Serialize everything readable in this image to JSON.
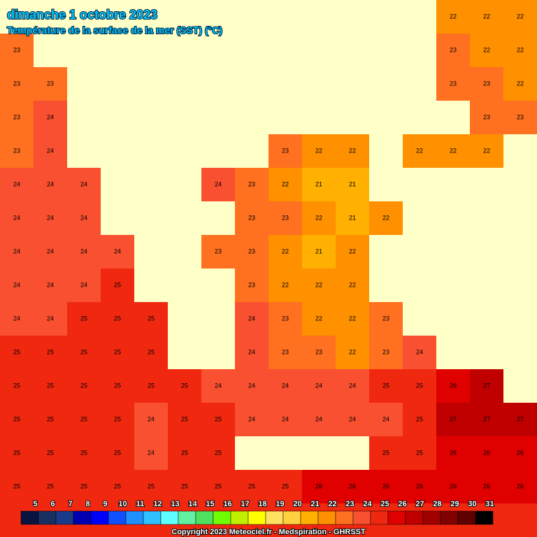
{
  "header": {
    "title": "dimanche 1 octobre 2023",
    "subtitle": "Température de la surface de la mer (SST)  (°C)"
  },
  "map": {
    "land_color": "#ffffc8",
    "rows": [
      [
        null,
        null,
        null,
        null,
        null,
        null,
        null,
        null,
        null,
        null,
        null,
        null,
        null,
        22,
        22,
        22
      ],
      [
        23,
        null,
        null,
        null,
        null,
        null,
        null,
        null,
        null,
        null,
        null,
        null,
        null,
        23,
        22,
        22
      ],
      [
        23,
        23,
        null,
        null,
        null,
        null,
        null,
        null,
        null,
        null,
        null,
        null,
        null,
        23,
        23,
        22
      ],
      [
        23,
        24,
        null,
        null,
        null,
        null,
        null,
        null,
        null,
        null,
        null,
        null,
        null,
        null,
        23,
        23
      ],
      [
        23,
        24,
        null,
        null,
        null,
        null,
        null,
        null,
        23,
        22,
        22,
        null,
        22,
        22,
        22,
        null
      ],
      [
        24,
        24,
        24,
        null,
        null,
        null,
        24,
        23,
        22,
        21,
        21,
        null,
        null,
        null,
        null,
        null
      ],
      [
        24,
        24,
        24,
        null,
        null,
        null,
        null,
        23,
        23,
        22,
        21,
        22,
        null,
        null,
        null,
        null
      ],
      [
        24,
        24,
        24,
        24,
        null,
        null,
        23,
        23,
        22,
        21,
        22,
        null,
        null,
        null,
        null,
        null
      ],
      [
        24,
        24,
        24,
        25,
        null,
        null,
        null,
        23,
        22,
        22,
        22,
        null,
        null,
        null,
        null,
        null
      ],
      [
        24,
        24,
        25,
        25,
        25,
        null,
        null,
        24,
        23,
        22,
        22,
        23,
        null,
        null,
        null,
        null
      ],
      [
        25,
        25,
        25,
        25,
        25,
        null,
        null,
        24,
        23,
        23,
        22,
        23,
        24,
        null,
        null,
        null
      ],
      [
        25,
        25,
        25,
        25,
        25,
        25,
        24,
        24,
        24,
        24,
        24,
        25,
        25,
        26,
        27,
        null
      ],
      [
        25,
        25,
        25,
        25,
        24,
        25,
        25,
        24,
        24,
        24,
        24,
        24,
        25,
        27,
        27,
        27
      ],
      [
        25,
        25,
        25,
        25,
        24,
        25,
        25,
        null,
        null,
        null,
        null,
        25,
        25,
        26,
        26,
        26
      ],
      [
        25,
        25,
        25,
        25,
        25,
        25,
        25,
        25,
        25,
        26,
        26,
        26,
        26,
        26,
        26,
        26
      ]
    ]
  },
  "colorbar": {
    "labels": [
      5,
      6,
      7,
      8,
      9,
      10,
      11,
      12,
      13,
      14,
      15,
      16,
      17,
      18,
      19,
      20,
      21,
      22,
      23,
      24,
      25,
      26,
      27,
      28,
      29,
      30,
      31
    ],
    "colors": [
      "#0a1440",
      "#1a3060",
      "#1a3a8a",
      "#0000b0",
      "#0000ff",
      "#1050ff",
      "#1e90ff",
      "#30c0ff",
      "#60ffff",
      "#60f0a0",
      "#50e060",
      "#70ff00",
      "#c0f000",
      "#ffff00",
      "#ffe060",
      "#ffd040",
      "#ffb000",
      "#ff9000",
      "#ff7020",
      "#f85030",
      "#f02810",
      "#e00000",
      "#c00000",
      "#a00000",
      "#800000",
      "#600000",
      "#000000"
    ]
  },
  "footer": {
    "copyright": "Copyright 2023 Meteociel.fr - Medspiration - GHRSST"
  }
}
